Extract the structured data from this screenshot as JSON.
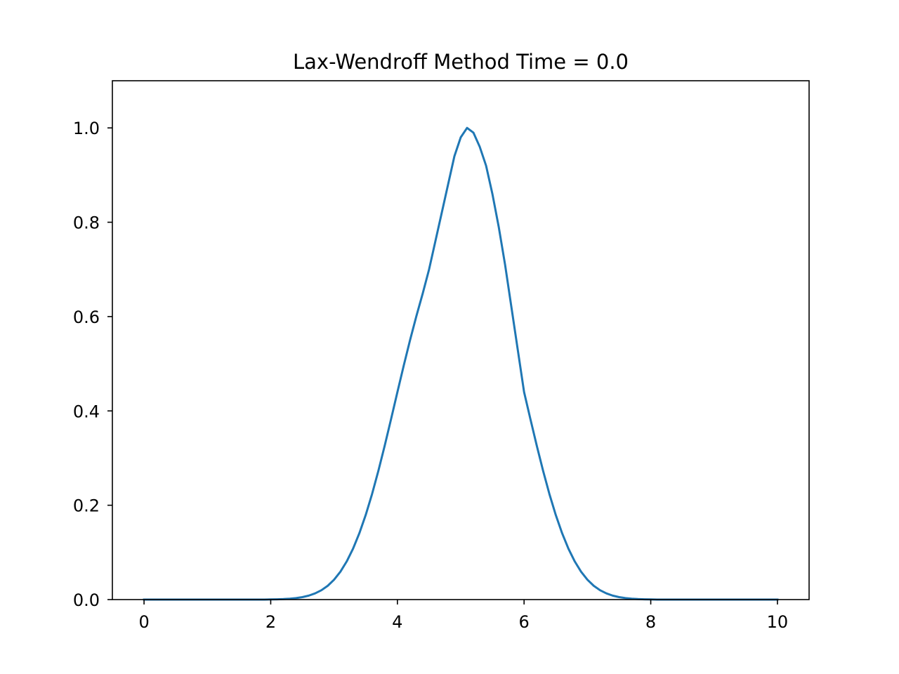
{
  "chart_data": {
    "type": "line",
    "title": "Lax-Wendroff Method Time = 0.0",
    "xlabel": "",
    "ylabel": "",
    "xlim": [
      -0.5,
      10.5
    ],
    "ylim": [
      0.0,
      1.1
    ],
    "grid": false,
    "x_ticks": [
      {
        "value": 0,
        "label": "0"
      },
      {
        "value": 2,
        "label": "2"
      },
      {
        "value": 4,
        "label": "4"
      },
      {
        "value": 6,
        "label": "6"
      },
      {
        "value": 8,
        "label": "8"
      },
      {
        "value": 10,
        "label": "10"
      }
    ],
    "y_ticks": [
      {
        "value": 0.0,
        "label": "0.0"
      },
      {
        "value": 0.2,
        "label": "0.2"
      },
      {
        "value": 0.4,
        "label": "0.4"
      },
      {
        "value": 0.6,
        "label": "0.6"
      },
      {
        "value": 0.8,
        "label": "0.8"
      },
      {
        "value": 1.0,
        "label": "1.0"
      }
    ],
    "series": [
      {
        "color": "#1f77b4",
        "x": [
          0.0,
          0.1,
          0.2,
          0.3,
          0.4,
          0.5,
          0.6,
          0.7,
          0.8,
          0.9,
          1.0,
          1.1,
          1.2,
          1.3,
          1.4,
          1.5,
          1.6,
          1.7,
          1.8,
          1.9,
          2.0,
          2.1,
          2.2,
          2.3,
          2.4,
          2.5,
          2.6,
          2.7,
          2.8,
          2.9,
          3.0,
          3.1,
          3.2,
          3.3,
          3.4,
          3.5,
          3.6,
          3.7,
          3.8,
          3.9,
          4.0,
          4.1,
          4.2,
          4.3,
          4.4,
          4.5,
          4.6,
          4.7,
          4.8,
          4.9,
          5.0,
          5.1,
          5.2,
          5.3,
          5.4,
          5.5,
          5.6,
          5.7,
          5.8,
          5.9,
          6.0,
          6.1,
          6.2,
          6.3,
          6.4,
          6.5,
          6.6,
          6.7,
          6.8,
          6.9,
          7.0,
          7.1,
          7.2,
          7.3,
          7.4,
          7.5,
          7.6,
          7.7,
          7.8,
          7.9,
          8.0,
          8.1,
          8.2,
          8.3,
          8.4,
          8.5,
          8.6,
          8.7,
          8.8,
          8.9,
          9.0,
          9.1,
          9.2,
          9.3,
          9.4,
          9.5,
          9.6,
          9.7,
          9.8,
          9.9,
          10.0
        ],
        "y": [
          0.0,
          0.0,
          0.0,
          0.0,
          0.0,
          0.0,
          0.0,
          0.0,
          0.0,
          0.0,
          0.0,
          0.0,
          0.0,
          0.0,
          0.0,
          0.0,
          0.0,
          0.0,
          0.0,
          0.0,
          0.0003,
          0.0006,
          0.0011,
          0.0019,
          0.0032,
          0.0052,
          0.0084,
          0.0131,
          0.0198,
          0.0292,
          0.0421,
          0.0591,
          0.0809,
          0.108,
          0.1409,
          0.1795,
          0.2238,
          0.2731,
          0.3265,
          0.3826,
          0.4398,
          0.4961,
          0.5502,
          0.6012,
          0.6491,
          0.7,
          0.76,
          0.82,
          0.88,
          0.94,
          0.98,
          1.0,
          0.99,
          0.96,
          0.92,
          0.86,
          0.79,
          0.71,
          0.62,
          0.53,
          0.44,
          0.3826,
          0.3265,
          0.2731,
          0.2238,
          0.1795,
          0.1409,
          0.108,
          0.0809,
          0.0591,
          0.0421,
          0.0292,
          0.0198,
          0.0131,
          0.0084,
          0.0052,
          0.0032,
          0.0019,
          0.0011,
          0.0006,
          0.0003,
          0.0,
          0.0,
          0.0,
          0.0,
          0.0,
          0.0,
          0.0,
          0.0,
          0.0,
          0.0,
          0.0,
          0.0,
          0.0,
          0.0,
          0.0,
          0.0,
          0.0,
          0.0,
          0.0,
          0.0
        ]
      }
    ]
  }
}
